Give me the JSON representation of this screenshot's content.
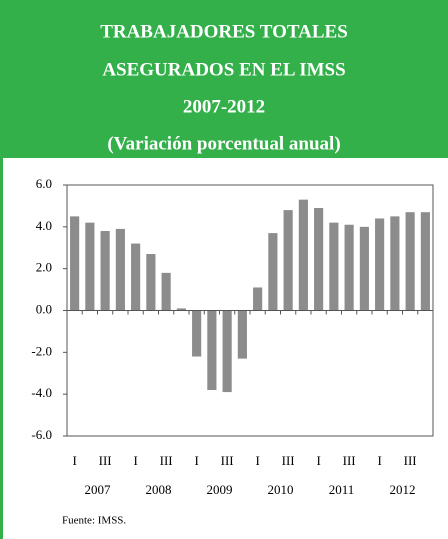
{
  "chart_data": {
    "type": "bar",
    "title": [
      "TRABAJADORES TOTALES",
      "ASEGURADOS EN EL IMSS",
      "2007-2012",
      "(Variación porcentual anual)"
    ],
    "categories": [
      "I",
      null,
      "III",
      null,
      "I",
      null,
      "III",
      null,
      "I",
      null,
      "III",
      null,
      "I",
      null,
      "III",
      null,
      "I",
      null,
      "III",
      null,
      "I",
      null,
      "III",
      null
    ],
    "years": [
      "2007",
      "2008",
      "2009",
      "2010",
      "2011",
      "2012"
    ],
    "values": [
      4.5,
      4.2,
      3.8,
      3.9,
      3.2,
      2.7,
      1.8,
      0.1,
      -2.2,
      -3.8,
      -3.9,
      -2.3,
      1.1,
      3.7,
      4.8,
      5.3,
      4.9,
      4.2,
      4.1,
      4.0,
      4.4,
      4.5,
      4.7,
      4.7
    ],
    "color": "#8c8c8c",
    "ylim": [
      -6,
      6
    ],
    "yticks": [
      {
        "value": -6,
        "label": "-6.0"
      },
      {
        "value": -4,
        "label": "-4.0"
      },
      {
        "value": -2,
        "label": "-2.0"
      },
      {
        "value": 0,
        "label": "0.0"
      },
      {
        "value": 2,
        "label": "2.0"
      },
      {
        "value": 4,
        "label": "4.0"
      },
      {
        "value": 6,
        "label": "6.0"
      }
    ],
    "source": "Fuente: IMSS."
  }
}
